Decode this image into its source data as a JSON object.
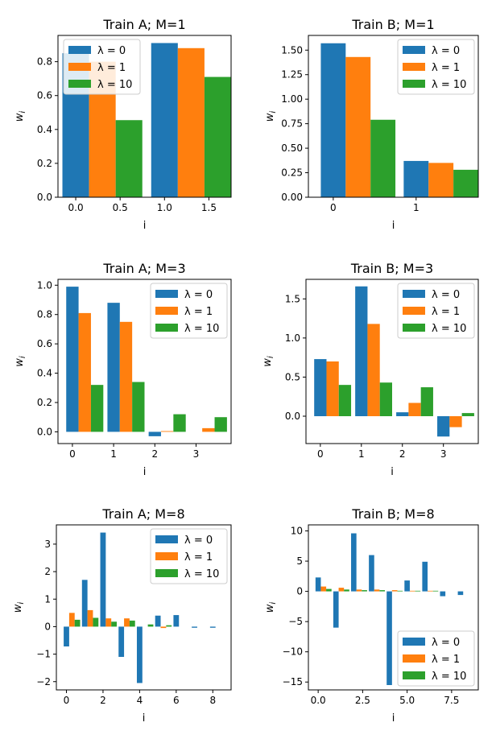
{
  "colors": {
    "lambda0": "#1f77b4",
    "lambda1": "#ff7f0e",
    "lambda10": "#2ca02c"
  },
  "chart_data": [
    {
      "type": "bar",
      "title": "Train A; M=1",
      "xlabel": "i",
      "ylabel": "w_i",
      "x": [
        0,
        1
      ],
      "bar_width": 0.3,
      "xlim": [
        -0.2,
        1.75
      ],
      "ylim": [
        0,
        0.955
      ],
      "xticks": [
        0.0,
        0.5,
        1.0,
        1.5
      ],
      "xtick_labels": [
        "0.0",
        "0.5",
        "1.0",
        "1.5"
      ],
      "yticks": [
        0,
        0.2,
        0.4,
        0.6,
        0.8
      ],
      "ytick_labels": [
        "0.0",
        "0.2",
        "0.4",
        "0.6",
        "0.8"
      ],
      "legend_position": "top-left",
      "series": [
        {
          "name": "λ = 0",
          "values": [
            0.85,
            0.91
          ]
        },
        {
          "name": "λ = 1",
          "values": [
            0.8,
            0.88
          ]
        },
        {
          "name": "λ = 10",
          "values": [
            0.455,
            0.71
          ]
        }
      ]
    },
    {
      "type": "bar",
      "title": "Train B; M=1",
      "xlabel": "i",
      "ylabel": "w_i",
      "x": [
        0,
        1
      ],
      "bar_width": 0.3,
      "xlim": [
        -0.3,
        1.75
      ],
      "ylim": [
        0,
        1.65
      ],
      "xticks": [
        0,
        1
      ],
      "xtick_labels": [
        "0",
        "1"
      ],
      "yticks": [
        0,
        0.25,
        0.5,
        0.75,
        1.0,
        1.25,
        1.5
      ],
      "ytick_labels": [
        "0.00",
        "0.25",
        "0.50",
        "0.75",
        "1.00",
        "1.25",
        "1.50"
      ],
      "legend_position": "top-right",
      "series": [
        {
          "name": "λ = 0",
          "values": [
            1.57,
            0.37
          ]
        },
        {
          "name": "λ = 1",
          "values": [
            1.43,
            0.35
          ]
        },
        {
          "name": "λ = 10",
          "values": [
            0.79,
            0.28
          ]
        }
      ]
    },
    {
      "type": "bar",
      "title": "Train A; M=3",
      "xlabel": "i",
      "ylabel": "w_i",
      "x": [
        0,
        1,
        2,
        3
      ],
      "bar_width": 0.3,
      "xlim": [
        -0.35,
        3.85
      ],
      "ylim": [
        -0.08,
        1.04
      ],
      "xticks": [
        0,
        1,
        2,
        3
      ],
      "xtick_labels": [
        "0",
        "1",
        "2",
        "3"
      ],
      "yticks": [
        0,
        0.2,
        0.4,
        0.6,
        0.8,
        1.0
      ],
      "ytick_labels": [
        "0.0",
        "0.2",
        "0.4",
        "0.6",
        "0.8",
        "1.0"
      ],
      "legend_position": "top-right",
      "series": [
        {
          "name": "λ = 0",
          "values": [
            0.99,
            0.88,
            -0.03,
            0.0
          ]
        },
        {
          "name": "λ = 1",
          "values": [
            0.81,
            0.75,
            0.005,
            0.025
          ]
        },
        {
          "name": "λ = 10",
          "values": [
            0.32,
            0.34,
            0.12,
            0.1
          ]
        }
      ]
    },
    {
      "type": "bar",
      "title": "Train B; M=3",
      "xlabel": "i",
      "ylabel": "w_i",
      "x": [
        0,
        1,
        2,
        3
      ],
      "bar_width": 0.3,
      "xlim": [
        -0.35,
        3.85
      ],
      "ylim": [
        -0.35,
        1.75
      ],
      "xticks": [
        0,
        1,
        2,
        3
      ],
      "xtick_labels": [
        "0",
        "1",
        "2",
        "3"
      ],
      "yticks": [
        0,
        0.5,
        1.0,
        1.5
      ],
      "ytick_labels": [
        "0.0",
        "0.5",
        "1.0",
        "1.5"
      ],
      "legend_position": "top-right",
      "series": [
        {
          "name": "λ = 0",
          "values": [
            0.73,
            1.66,
            0.05,
            -0.26
          ]
        },
        {
          "name": "λ = 1",
          "values": [
            0.7,
            1.18,
            0.17,
            -0.14
          ]
        },
        {
          "name": "λ = 10",
          "values": [
            0.4,
            0.43,
            0.37,
            0.04
          ]
        }
      ]
    },
    {
      "type": "bar",
      "title": "Train A; M=8",
      "xlabel": "i",
      "ylabel": "w_i",
      "x": [
        0,
        1,
        2,
        3,
        4,
        5,
        6,
        7,
        8
      ],
      "bar_width": 0.3,
      "xlim": [
        -0.55,
        9.0
      ],
      "ylim": [
        -2.3,
        3.7
      ],
      "xticks": [
        0,
        2,
        4,
        6,
        8
      ],
      "xtick_labels": [
        "0",
        "2",
        "4",
        "6",
        "8"
      ],
      "yticks": [
        -2,
        -1,
        0,
        1,
        2,
        3
      ],
      "ytick_labels": [
        "−2",
        "−1",
        "0",
        "1",
        "2",
        "3"
      ],
      "legend_position": "top-right",
      "series": [
        {
          "name": "λ = 0",
          "values": [
            -0.72,
            1.7,
            3.42,
            -1.1,
            -2.05,
            0.4,
            0.42,
            -0.04,
            -0.04
          ]
        },
        {
          "name": "λ = 1",
          "values": [
            0.5,
            0.6,
            0.3,
            0.3,
            0.0,
            -0.05,
            0.0,
            0.0,
            0.0
          ]
        },
        {
          "name": "λ = 10",
          "values": [
            0.25,
            0.32,
            0.18,
            0.22,
            0.08,
            0.05,
            0.0,
            0.0,
            0.0
          ]
        }
      ]
    },
    {
      "type": "bar",
      "title": "Train B; M=8",
      "xlabel": "i",
      "ylabel": "w_i",
      "x": [
        0,
        1,
        2,
        3,
        4,
        5,
        6,
        7,
        8
      ],
      "bar_width": 0.3,
      "xlim": [
        -0.55,
        9.0
      ],
      "ylim": [
        -16.3,
        11.0
      ],
      "xticks": [
        0,
        2.5,
        5,
        7.5
      ],
      "xtick_labels": [
        "0.0",
        "2.5",
        "5.0",
        "7.5"
      ],
      "yticks": [
        -15,
        -10,
        -5,
        0,
        5,
        10
      ],
      "ytick_labels": [
        "−15",
        "−10",
        "−5",
        "0",
        "5",
        "10"
      ],
      "legend_position": "bottom-right",
      "series": [
        {
          "name": "λ = 0",
          "values": [
            2.3,
            -6.0,
            9.6,
            6.0,
            -15.5,
            1.8,
            4.9,
            -0.8,
            -0.6
          ]
        },
        {
          "name": "λ = 1",
          "values": [
            0.8,
            0.6,
            0.3,
            0.3,
            0.2,
            0.1,
            0.1,
            0.0,
            0.0
          ]
        },
        {
          "name": "λ = 10",
          "values": [
            0.4,
            0.3,
            0.2,
            0.2,
            0.1,
            0.1,
            0.1,
            0.0,
            0.0
          ]
        }
      ]
    }
  ]
}
